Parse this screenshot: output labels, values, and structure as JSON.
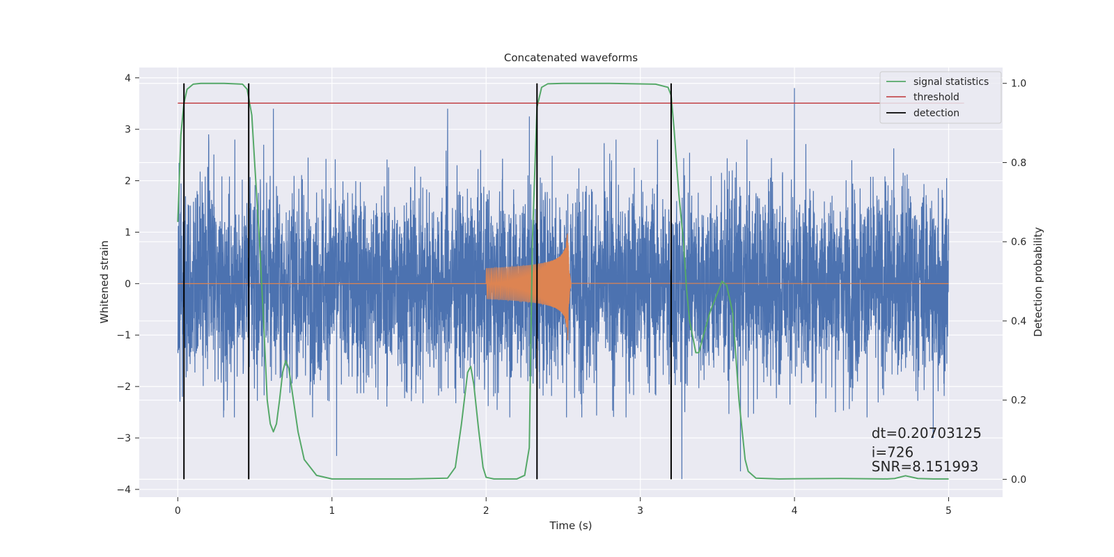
{
  "chart_data": {
    "type": "line",
    "title": "Concatenated waveforms",
    "xlabel": "Time (s)",
    "ylabel": "Whitened strain",
    "y2label": "Detection probability",
    "xlim": [
      -0.25,
      5.35
    ],
    "ylim": [
      -4.15,
      4.2
    ],
    "y2lim": [
      -0.045,
      1.04
    ],
    "xticks": [
      0,
      1,
      2,
      3,
      4,
      5
    ],
    "yticks": [
      -4,
      -3,
      -2,
      -1,
      0,
      1,
      2,
      3,
      4
    ],
    "y2ticks": [
      0.0,
      0.2,
      0.4,
      0.6,
      0.8,
      1.0
    ],
    "xtick_labels": [
      "0",
      "1",
      "2",
      "3",
      "4",
      "5"
    ],
    "ytick_labels": [
      "−4",
      "−3",
      "−2",
      "−1",
      "0",
      "1",
      "2",
      "3",
      "4"
    ],
    "y2tick_labels": [
      "0.0",
      "0.2",
      "0.4",
      "0.6",
      "0.8",
      "1.0"
    ],
    "grid": true,
    "legend_position": "upper right",
    "legend": [
      {
        "label": "signal statistics",
        "color": "#55a868"
      },
      {
        "label": "threshold",
        "color": "#c44e52"
      },
      {
        "label": "detection",
        "color": "#000000"
      }
    ],
    "series": [
      {
        "description": "whitened strain noise (blue)",
        "color": "#4c72b0",
        "axis": "left",
        "x_range": [
          0,
          5
        ],
        "typical_envelope": [
          -2.0,
          2.2
        ],
        "extremes": [
          [
            0.03,
            -2.2
          ],
          [
            0.2,
            2.9
          ],
          [
            0.62,
            3.4
          ],
          [
            1.03,
            -3.35
          ],
          [
            1.75,
            3.4
          ],
          [
            2.28,
            3.25
          ],
          [
            3.2,
            3.3
          ],
          [
            3.27,
            -3.8
          ],
          [
            3.65,
            -3.65
          ],
          [
            4.0,
            3.8
          ],
          [
            4.9,
            -3.0
          ]
        ]
      },
      {
        "description": "injected waveform (orange chirp)",
        "color": "#dd8452",
        "axis": "left",
        "start": 2.0,
        "merger": 2.53,
        "end": 2.55,
        "amplitude_start": 0.3,
        "amplitude_peak": 1.22,
        "amplitude_min_peak": -1.1
      },
      {
        "name": "signal statistics",
        "color": "#55a868",
        "axis": "right",
        "x": [
          0.0,
          0.02,
          0.04,
          0.06,
          0.1,
          0.15,
          0.3,
          0.42,
          0.45,
          0.48,
          0.5,
          0.53,
          0.56,
          0.58,
          0.6,
          0.62,
          0.64,
          0.66,
          0.68,
          0.7,
          0.72,
          0.75,
          0.78,
          0.82,
          0.9,
          1.0,
          1.5,
          1.75,
          1.8,
          1.84,
          1.88,
          1.9,
          1.92,
          1.95,
          1.98,
          2.0,
          2.05,
          2.1,
          2.2,
          2.25,
          2.28,
          2.3,
          2.33,
          2.36,
          2.4,
          2.5,
          2.8,
          3.1,
          3.18,
          3.2,
          3.22,
          3.25,
          3.28,
          3.3,
          3.32,
          3.34,
          3.36,
          3.38,
          3.4,
          3.45,
          3.5,
          3.53,
          3.56,
          3.6,
          3.64,
          3.68,
          3.7,
          3.75,
          3.9,
          4.3,
          4.6,
          4.65,
          4.72,
          4.8,
          4.9,
          5.0
        ],
        "values": [
          0.65,
          0.87,
          0.95,
          0.985,
          0.998,
          1.0,
          1.0,
          0.998,
          0.985,
          0.92,
          0.79,
          0.6,
          0.37,
          0.2,
          0.14,
          0.12,
          0.14,
          0.2,
          0.27,
          0.3,
          0.28,
          0.2,
          0.12,
          0.05,
          0.01,
          0.001,
          0.001,
          0.003,
          0.03,
          0.14,
          0.27,
          0.285,
          0.24,
          0.13,
          0.03,
          0.005,
          0.001,
          0.001,
          0.001,
          0.01,
          0.08,
          0.6,
          0.94,
          0.99,
          0.999,
          1.0,
          1.0,
          0.998,
          0.99,
          0.97,
          0.88,
          0.72,
          0.6,
          0.48,
          0.4,
          0.36,
          0.32,
          0.32,
          0.35,
          0.42,
          0.47,
          0.5,
          0.49,
          0.42,
          0.2,
          0.05,
          0.02,
          0.003,
          0.001,
          0.002,
          0.001,
          0.002,
          0.009,
          0.002,
          0.001,
          0.001
        ]
      },
      {
        "name": "threshold",
        "color": "#c44e52",
        "axis": "right",
        "x": [
          0,
          5.1
        ],
        "values": [
          0.95,
          0.95
        ]
      },
      {
        "name": "detection",
        "color": "#000000",
        "axis": "right",
        "x": [
          0.04,
          0.46,
          2.33,
          3.2
        ],
        "vline_range": [
          0,
          1.0
        ]
      }
    ],
    "annotations": [
      {
        "text": "dt=0.20703125",
        "x": 4.5,
        "y": -3.0
      },
      {
        "text": " i=726",
        "x": 4.5,
        "y": -3.37
      },
      {
        "text": "SNR=8.151993",
        "x": 4.5,
        "y": -3.65
      }
    ]
  }
}
